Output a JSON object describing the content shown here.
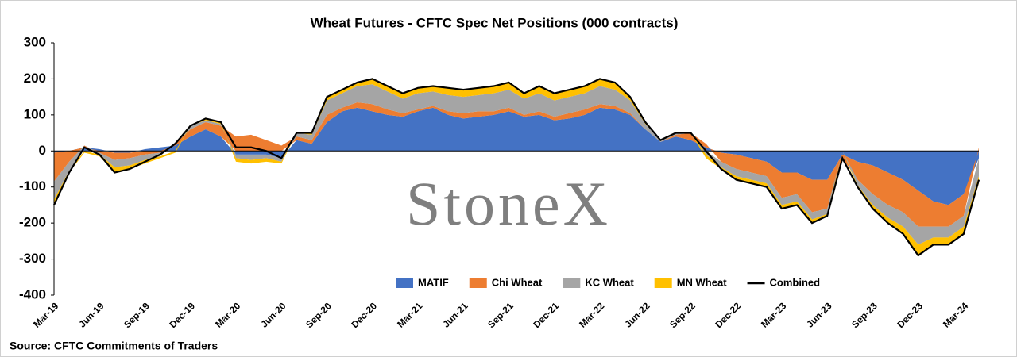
{
  "chart_data": {
    "type": "area",
    "title": "Wheat Futures - CFTC Spec Net Positions (000 contracts)",
    "source": "Source:  CFTC Commitments of Traders",
    "watermark": "StoneX",
    "categories": [
      "Mar-19",
      null,
      null,
      "Jun-19",
      null,
      null,
      "Sep-19",
      null,
      null,
      "Dec-19",
      null,
      null,
      "Mar-20",
      null,
      null,
      "Jun-20",
      null,
      null,
      "Sep-20",
      null,
      null,
      "Dec-20",
      null,
      null,
      "Mar-21",
      null,
      null,
      "Jun-21",
      null,
      null,
      "Sep-21",
      null,
      null,
      "Dec-21",
      null,
      null,
      "Mar-22",
      null,
      null,
      "Jun-22",
      null,
      null,
      "Sep-22",
      null,
      null,
      "Dec-22",
      null,
      null,
      "Mar-23",
      null,
      null,
      "Jun-23",
      null,
      null,
      "Sep-23",
      null,
      null,
      "Dec-23",
      null,
      null,
      "Mar-24",
      null
    ],
    "ylim": [
      -400,
      300
    ],
    "yticks": [
      -400,
      -300,
      -200,
      -100,
      0,
      100,
      200,
      300
    ],
    "legend": "bottom",
    "series": [
      {
        "name": "MATIF",
        "color": "#4472c4",
        "values": [
          -5,
          0,
          10,
          5,
          -5,
          -5,
          5,
          10,
          15,
          40,
          60,
          40,
          -10,
          -10,
          -10,
          -20,
          30,
          20,
          80,
          110,
          120,
          110,
          100,
          95,
          110,
          120,
          100,
          90,
          95,
          100,
          110,
          95,
          100,
          85,
          90,
          100,
          120,
          115,
          100,
          60,
          25,
          40,
          30,
          10,
          -5,
          -10,
          -20,
          -30,
          -60,
          -60,
          -80,
          -80,
          -10,
          -30,
          -40,
          -60,
          -80,
          -110,
          -140,
          -150,
          -120,
          -20
        ]
      },
      {
        "name": "Chi Wheat",
        "color": "#ed7d31",
        "values": [
          -80,
          -30,
          5,
          -5,
          -20,
          -15,
          -10,
          -5,
          5,
          20,
          20,
          30,
          40,
          45,
          30,
          15,
          10,
          10,
          20,
          10,
          15,
          20,
          15,
          10,
          5,
          5,
          10,
          15,
          15,
          10,
          10,
          5,
          10,
          10,
          15,
          15,
          10,
          10,
          5,
          0,
          0,
          5,
          20,
          10,
          -25,
          -40,
          -40,
          -40,
          -70,
          -60,
          -90,
          -80,
          -10,
          -50,
          -80,
          -90,
          -90,
          -100,
          -70,
          -60,
          -60,
          10
        ]
      },
      {
        "name": "KC Wheat",
        "color": "#a5a5a5",
        "values": [
          -50,
          -25,
          0,
          -5,
          -20,
          -20,
          -15,
          -10,
          5,
          10,
          5,
          5,
          -10,
          -15,
          -10,
          -10,
          10,
          15,
          40,
          40,
          45,
          55,
          50,
          40,
          45,
          40,
          45,
          45,
          45,
          50,
          50,
          45,
          50,
          45,
          45,
          45,
          50,
          45,
          35,
          15,
          5,
          5,
          0,
          -10,
          -15,
          -20,
          -20,
          -20,
          -20,
          -20,
          -20,
          -15,
          0,
          -15,
          -30,
          -35,
          -40,
          -50,
          -30,
          -30,
          -30,
          -50
        ]
      },
      {
        "name": "MN Wheat",
        "color": "#ffc000",
        "values": [
          -15,
          -5,
          -5,
          -5,
          -15,
          -10,
          -10,
          -5,
          -5,
          0,
          5,
          5,
          -10,
          -10,
          -10,
          -5,
          0,
          5,
          10,
          10,
          10,
          15,
          15,
          15,
          15,
          15,
          20,
          20,
          20,
          20,
          20,
          15,
          20,
          20,
          20,
          20,
          20,
          20,
          10,
          5,
          0,
          0,
          0,
          -10,
          -5,
          -10,
          -10,
          -10,
          -10,
          -10,
          -10,
          -5,
          0,
          -5,
          -10,
          -15,
          -20,
          -30,
          -20,
          -20,
          -20,
          -20
        ]
      },
      {
        "name": "Combined",
        "color": "#000000",
        "kind": "line",
        "values": [
          -150,
          -60,
          10,
          -10,
          -60,
          -50,
          -30,
          -10,
          20,
          70,
          90,
          80,
          10,
          10,
          0,
          -20,
          50,
          50,
          150,
          170,
          190,
          200,
          180,
          160,
          175,
          180,
          175,
          170,
          175,
          180,
          190,
          160,
          180,
          160,
          170,
          180,
          200,
          190,
          150,
          80,
          30,
          50,
          50,
          0,
          -50,
          -80,
          -90,
          -100,
          -160,
          -150,
          -200,
          -180,
          -20,
          -100,
          -160,
          -200,
          -230,
          -290,
          -260,
          -260,
          -230,
          -80
        ]
      }
    ]
  }
}
